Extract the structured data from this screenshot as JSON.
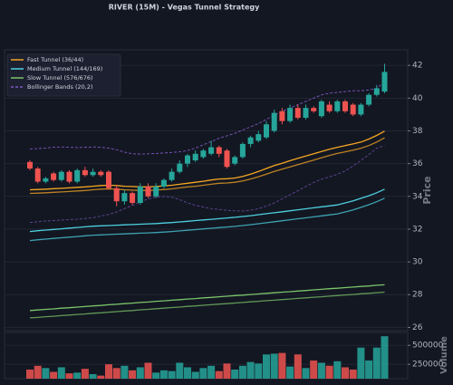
{
  "chart_data": [
    {
      "type": "candlestick",
      "title": "RIVER (15M) - Vegas Tunnel Strategy",
      "ylabel": "Price",
      "ylim": [
        25.8,
        42.95
      ],
      "yticks": [
        26,
        28,
        30,
        32,
        34,
        36,
        38,
        40,
        42
      ],
      "grid": true,
      "legend": "upper left",
      "up_color": "#26a69a",
      "down_color": "#ef5350",
      "open": [
        36.1,
        35.7,
        34.9,
        35.4,
        35.0,
        35.5,
        34.9,
        35.6,
        35.3,
        35.5,
        35.5,
        34.5,
        33.7,
        34.2,
        33.6,
        34.6,
        34.0,
        34.6,
        35.0,
        35.5,
        36.0,
        36.2,
        36.4,
        36.6,
        37.0,
        36.8,
        36.0,
        36.4,
        37.2,
        37.4,
        37.6,
        38.0,
        39.2,
        38.6,
        39.4,
        38.8,
        39.4,
        38.9,
        39.6,
        39.2,
        39.8,
        39.6,
        39.0,
        39.6,
        40.2,
        40.4
      ],
      "high": [
        36.2,
        35.8,
        35.2,
        35.5,
        35.6,
        35.6,
        35.7,
        35.8,
        35.7,
        35.6,
        35.6,
        34.7,
        34.4,
        34.3,
        34.8,
        34.8,
        34.8,
        35.1,
        35.7,
        36.2,
        36.6,
        36.8,
        36.9,
        37.4,
        37.1,
        36.9,
        36.5,
        37.3,
        37.7,
        38.0,
        38.6,
        39.3,
        39.4,
        39.6,
        39.6,
        39.6,
        39.5,
        39.9,
        39.8,
        39.9,
        39.9,
        39.7,
        39.7,
        40.3,
        40.8,
        42.1
      ],
      "low": [
        35.6,
        34.8,
        34.8,
        34.9,
        34.9,
        34.8,
        34.8,
        35.2,
        35.2,
        35.2,
        34.4,
        33.4,
        33.5,
        33.5,
        33.5,
        33.9,
        33.9,
        34.5,
        34.9,
        35.4,
        35.8,
        36.1,
        36.3,
        36.5,
        36.4,
        35.7,
        35.9,
        36.3,
        37.0,
        37.3,
        37.5,
        37.9,
        38.4,
        38.5,
        38.7,
        38.7,
        39.1,
        38.8,
        39.1,
        39.1,
        39.1,
        38.9,
        38.9,
        39.5,
        40.1,
        40.3
      ],
      "close": [
        35.7,
        34.9,
        35.1,
        35.0,
        35.5,
        34.9,
        35.6,
        35.3,
        35.5,
        35.3,
        34.5,
        33.7,
        34.2,
        33.6,
        34.6,
        34.0,
        34.6,
        35.0,
        35.5,
        36.0,
        36.5,
        36.6,
        36.8,
        37.0,
        36.6,
        35.8,
        36.4,
        37.2,
        37.6,
        37.8,
        38.4,
        39.1,
        38.6,
        39.4,
        38.8,
        39.4,
        39.2,
        39.8,
        39.2,
        39.8,
        39.2,
        39.0,
        39.6,
        40.2,
        40.6,
        41.6
      ],
      "overlays": [
        {
          "name": "Fast Tunnel (36/44)",
          "color": "#f5a623",
          "dashed": false,
          "lines": [
            [
              34.4,
              34.42,
              34.44,
              34.47,
              34.49,
              34.52,
              34.55,
              34.58,
              34.62,
              34.66,
              34.68,
              34.66,
              34.62,
              34.6,
              34.58,
              34.58,
              34.6,
              34.64,
              34.68,
              34.74,
              34.8,
              34.86,
              34.92,
              35.0,
              35.06,
              35.08,
              35.12,
              35.22,
              35.36,
              35.52,
              35.7,
              35.88,
              36.02,
              36.18,
              36.32,
              36.46,
              36.6,
              36.74,
              36.88,
              37.0,
              37.1,
              37.2,
              37.32,
              37.5,
              37.72,
              37.98
            ],
            [
              34.18,
              34.2,
              34.22,
              34.25,
              34.27,
              34.3,
              34.33,
              34.36,
              34.4,
              34.44,
              34.46,
              34.44,
              34.4,
              34.38,
              34.36,
              34.36,
              34.38,
              34.42,
              34.46,
              34.52,
              34.58,
              34.62,
              34.68,
              34.74,
              34.8,
              34.82,
              34.86,
              34.94,
              35.06,
              35.2,
              35.36,
              35.52,
              35.66,
              35.8,
              35.94,
              36.08,
              36.22,
              36.36,
              36.5,
              36.62,
              36.72,
              36.82,
              36.94,
              37.1,
              37.32,
              37.58
            ]
          ]
        },
        {
          "name": "Medium Tunnel (144/169)",
          "color": "#4dd0e1",
          "dashed": false,
          "lines": [
            [
              31.85,
              31.9,
              31.94,
              31.98,
              32.02,
              32.06,
              32.1,
              32.14,
              32.18,
              32.2,
              32.22,
              32.24,
              32.26,
              32.28,
              32.3,
              32.32,
              32.34,
              32.37,
              32.4,
              32.44,
              32.48,
              32.52,
              32.56,
              32.6,
              32.64,
              32.68,
              32.72,
              32.77,
              32.82,
              32.88,
              32.94,
              33.0,
              33.06,
              33.12,
              33.18,
              33.24,
              33.3,
              33.36,
              33.42,
              33.48,
              33.6,
              33.72,
              33.88,
              34.04,
              34.22,
              34.44
            ],
            [
              31.3,
              31.35,
              31.39,
              31.43,
              31.47,
              31.51,
              31.55,
              31.59,
              31.63,
              31.65,
              31.67,
              31.69,
              31.71,
              31.73,
              31.75,
              31.77,
              31.79,
              31.82,
              31.85,
              31.89,
              31.93,
              31.97,
              32.01,
              32.05,
              32.09,
              32.13,
              32.17,
              32.22,
              32.27,
              32.33,
              32.39,
              32.45,
              32.51,
              32.57,
              32.63,
              32.69,
              32.75,
              32.81,
              32.87,
              32.93,
              33.05,
              33.17,
              33.33,
              33.49,
              33.67,
              33.89
            ]
          ]
        },
        {
          "name": "Slow Tunnel (576/676)",
          "color": "#7cc46a",
          "dashed": false,
          "lines": [
            [
              27.03,
              27.06,
              27.1,
              27.13,
              27.17,
              27.2,
              27.24,
              27.27,
              27.31,
              27.34,
              27.38,
              27.41,
              27.45,
              27.48,
              27.52,
              27.55,
              27.59,
              27.62,
              27.66,
              27.69,
              27.73,
              27.76,
              27.8,
              27.83,
              27.87,
              27.9,
              27.94,
              27.97,
              28.01,
              28.04,
              28.08,
              28.11,
              28.15,
              28.18,
              28.22,
              28.25,
              28.29,
              28.32,
              28.36,
              28.39,
              28.43,
              28.46,
              28.5,
              28.53,
              28.57,
              28.6
            ],
            [
              26.58,
              26.61,
              26.65,
              26.68,
              26.72,
              26.75,
              26.79,
              26.82,
              26.86,
              26.89,
              26.93,
              26.96,
              27.0,
              27.03,
              27.07,
              27.1,
              27.14,
              27.17,
              27.21,
              27.24,
              27.28,
              27.31,
              27.35,
              27.38,
              27.42,
              27.45,
              27.49,
              27.52,
              27.56,
              27.59,
              27.63,
              27.66,
              27.7,
              27.73,
              27.77,
              27.8,
              27.84,
              27.87,
              27.91,
              27.94,
              27.98,
              28.01,
              28.05,
              28.08,
              28.12,
              28.15
            ]
          ]
        },
        {
          "name": "Bollinger Bands (20,2)",
          "color": "#7e57c2",
          "dashed": true,
          "lines": [
            [
              36.9,
              36.92,
              36.95,
              37.0,
              37.02,
              37.0,
              36.98,
              37.0,
              37.02,
              37.0,
              36.95,
              36.85,
              36.7,
              36.6,
              36.58,
              36.6,
              36.62,
              36.65,
              36.68,
              36.72,
              36.8,
              36.95,
              37.15,
              37.35,
              37.55,
              37.7,
              37.85,
              38.05,
              38.25,
              38.45,
              38.7,
              38.95,
              39.2,
              39.4,
              39.6,
              39.8,
              40.0,
              40.2,
              40.3,
              40.35,
              40.4,
              40.45,
              40.45,
              40.5,
              40.6,
              41.0
            ],
            [
              32.4,
              32.45,
              32.5,
              32.52,
              32.55,
              32.58,
              32.6,
              32.65,
              32.7,
              32.8,
              32.9,
              33.05,
              33.25,
              33.45,
              33.65,
              33.85,
              33.95,
              34.0,
              33.95,
              33.8,
              33.6,
              33.45,
              33.35,
              33.25,
              33.2,
              33.15,
              33.12,
              33.1,
              33.15,
              33.25,
              33.4,
              33.6,
              33.85,
              34.1,
              34.35,
              34.6,
              34.85,
              35.05,
              35.2,
              35.35,
              35.55,
              35.85,
              36.2,
              36.55,
              36.95,
              37.1
            ]
          ]
        }
      ]
    },
    {
      "type": "bar",
      "ylabel": "Volume",
      "ylim": [
        60000,
        670000
      ],
      "yticks": [
        250000,
        500000
      ],
      "grid": true,
      "up_color": "#26a69a",
      "down_color": "#ef5350",
      "values": [
        180000,
        230000,
        200000,
        150000,
        210000,
        130000,
        140000,
        190000,
        120000,
        100000,
        250000,
        200000,
        230000,
        170000,
        210000,
        270000,
        140000,
        170000,
        160000,
        270000,
        210000,
        150000,
        200000,
        230000,
        160000,
        260000,
        180000,
        230000,
        280000,
        260000,
        380000,
        390000,
        400000,
        220000,
        380000,
        200000,
        300000,
        270000,
        230000,
        290000,
        210000,
        180000,
        470000,
        300000,
        470000,
        620000
      ]
    }
  ]
}
